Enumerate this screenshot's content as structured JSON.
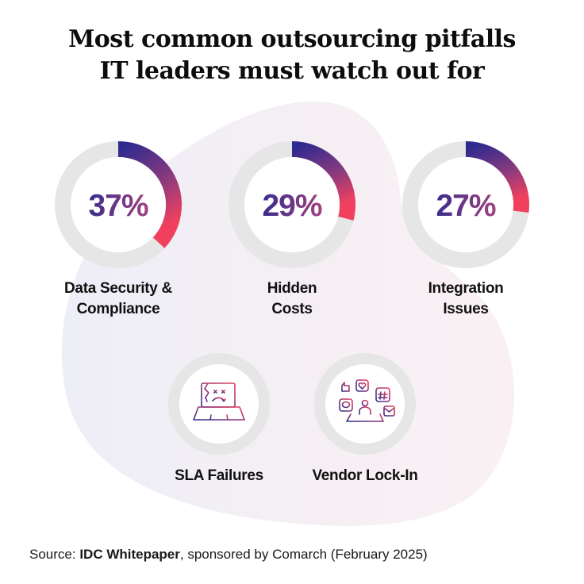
{
  "title": {
    "line1": "Most common outsourcing pitfalls",
    "line2": "IT leaders must watch out for"
  },
  "colors": {
    "gradient_start": "#2e2a8f",
    "gradient_end": "#f0405e",
    "track": "#e6e6e6",
    "blob_left": "#eeeef6",
    "blob_right": "#f9eef2"
  },
  "chart_data": {
    "type": "pie",
    "subtype": "donut-gauges",
    "title": "Most common outsourcing pitfalls IT leaders must watch out for",
    "categories": [
      "Data Security & Compliance",
      "Hidden Costs",
      "Integration Issues"
    ],
    "values": [
      37,
      29,
      27
    ],
    "unit": "%",
    "value_labels": [
      "37%",
      "29%",
      "27%"
    ],
    "label_lines": [
      [
        "Data Security &",
        "Compliance"
      ],
      [
        "Hidden",
        "Costs"
      ],
      [
        "Integration",
        "Issues"
      ]
    ],
    "max": 100
  },
  "extra_pitfalls": [
    {
      "label": "SLA Failures",
      "icon": "broken-laptop-icon"
    },
    {
      "label": "Vendor Lock-In",
      "icon": "social-media-laptop-icon"
    }
  ],
  "source": {
    "prefix": "Source: ",
    "bold": "IDC Whitepaper",
    "suffix": ", sponsored by Comarch (February 2025)"
  }
}
